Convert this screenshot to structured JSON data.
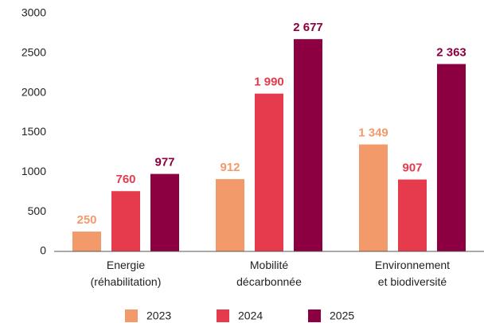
{
  "chart_data": {
    "type": "bar",
    "categories": [
      [
        "Energie",
        "(réhabilitation)"
      ],
      [
        "Mobilité",
        "décarbonnée"
      ],
      [
        "Environnement",
        "et biodiversité"
      ]
    ],
    "series": [
      {
        "name": "2023",
        "color": "#f39a6b",
        "values": [
          250,
          912,
          1349
        ],
        "value_labels": [
          "250",
          "912",
          "1 349"
        ]
      },
      {
        "name": "2024",
        "color": "#e63a4d",
        "values": [
          760,
          1990,
          907
        ],
        "value_labels": [
          "760",
          "1 990",
          "907"
        ]
      },
      {
        "name": "2025",
        "color": "#8c0042",
        "values": [
          977,
          2677,
          2363
        ],
        "value_labels": [
          "977",
          "2 677",
          "2 363"
        ]
      }
    ],
    "ylim": [
      0,
      3000
    ],
    "yticks": [
      0,
      500,
      1000,
      1500,
      2000,
      2500,
      3000
    ],
    "grid": false,
    "legend": "bottom"
  }
}
